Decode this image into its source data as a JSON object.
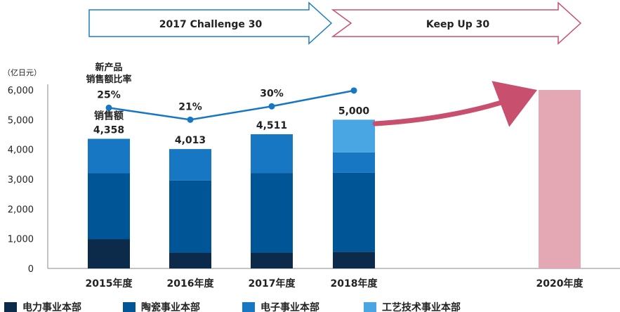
{
  "phases": [
    {
      "label": "2017 Challenge 30",
      "color": "#1f7dc4",
      "fill": "#ffffff"
    },
    {
      "label": "Keep Up 30",
      "color": "#c8506e",
      "fill": "#ffffff"
    }
  ],
  "chart_data": {
    "type": "bar",
    "stacked": true,
    "title": "",
    "xlabel": "",
    "ylabel": "（亿日元）",
    "ylim": [
      0,
      6000
    ],
    "yticks": [
      "0",
      "1,000",
      "2,000",
      "3,000",
      "4,000",
      "5,000",
      "6,000"
    ],
    "categories": [
      "2015年度",
      "2016年度",
      "2017年度",
      "2018年度",
      "2020年度"
    ],
    "series": [
      {
        "name": "电力事业本部",
        "color": "#0c2a4a",
        "values": [
          980,
          530,
          530,
          560,
          null
        ]
      },
      {
        "name": "陶瓷事业本部",
        "color": "#005596",
        "values": [
          2220,
          2430,
          2680,
          2660,
          null
        ]
      },
      {
        "name": "电子事业本部",
        "color": "#1777c2",
        "values": [
          1158,
          1053,
          1301,
          680,
          null
        ]
      },
      {
        "name": "工艺技术事业本部",
        "color": "#4aa6e3",
        "values": [
          0,
          0,
          0,
          1100,
          null
        ]
      }
    ],
    "target": {
      "category": "2020年度",
      "value": 6000,
      "color": "#e3a8b4"
    },
    "totals": {
      "label": "销售额",
      "values": [
        4358,
        4013,
        4511,
        5000
      ],
      "display": [
        "4,358",
        "4,013",
        "4,511",
        "5,000"
      ]
    },
    "ratio": {
      "label_line1": "新产品",
      "label_line2": "销售额比率",
      "values": [
        25,
        21,
        30,
        null
      ],
      "display": [
        "25%",
        "21%",
        "30%",
        ""
      ],
      "line_color": "#1777c2",
      "marker_y": [
        5400,
        5000,
        5450,
        5980
      ]
    },
    "arrow_color": "#c8506e",
    "legend_position": "bottom"
  }
}
